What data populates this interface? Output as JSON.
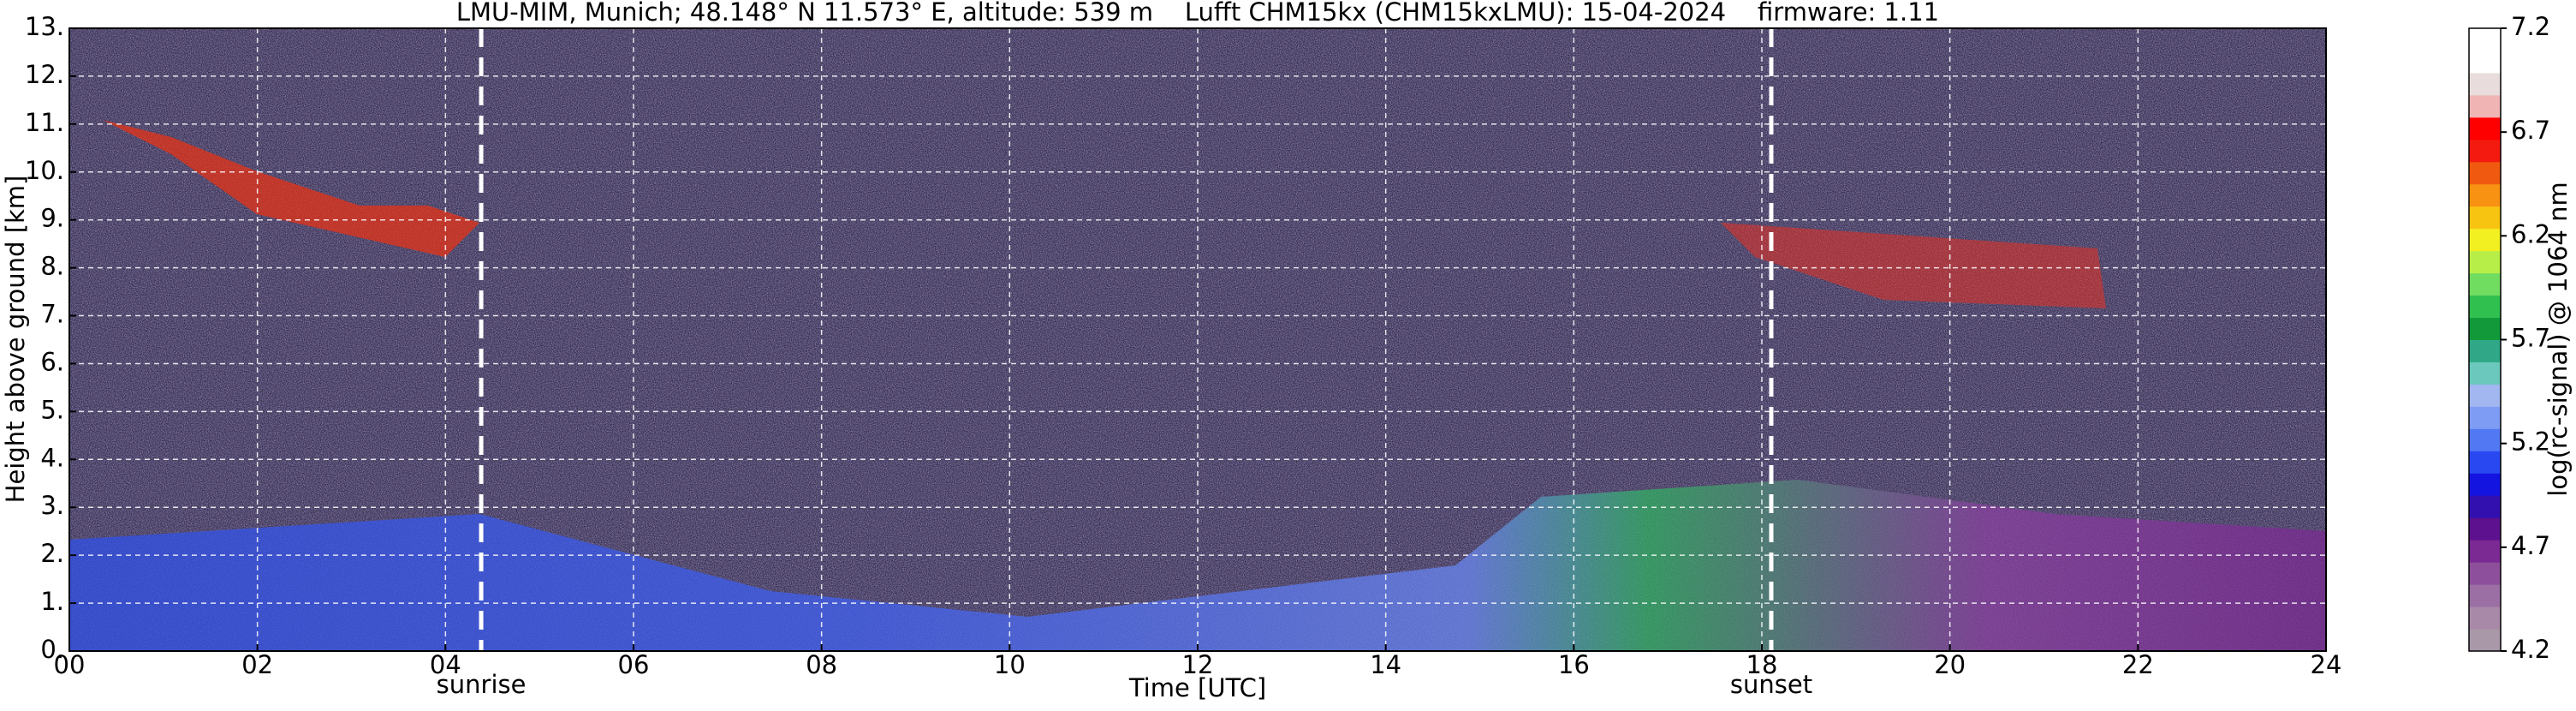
{
  "chart_data": {
    "type": "heatmap",
    "title": "LMU-MIM, Munich; 48.148° N 11.573° E, altitude: 539 m    Lufft CHM15kx (CHM15kxLMU): 15-04-2024    firmware: 1.11",
    "x_label": "Time [UTC]",
    "y_label": "Height above ground [km]",
    "xlim": [
      0,
      24
    ],
    "xticks": [
      {
        "value": 0,
        "label": "00"
      },
      {
        "value": 2,
        "label": "02"
      },
      {
        "value": 4,
        "label": "04"
      },
      {
        "value": 6,
        "label": "06"
      },
      {
        "value": 8,
        "label": "08"
      },
      10,
      12,
      14,
      16,
      18,
      20,
      22,
      24
    ],
    "ylim": [
      0,
      13
    ],
    "yticks": [
      {
        "value": 0,
        "label": "0."
      },
      {
        "value": 1,
        "label": "1."
      },
      {
        "value": 2,
        "label": "2."
      },
      {
        "value": 3,
        "label": "3."
      },
      {
        "value": 4,
        "label": "4."
      },
      {
        "value": 5,
        "label": "5."
      },
      {
        "value": 6,
        "label": "6."
      },
      {
        "value": 7,
        "label": "7."
      },
      {
        "value": 8,
        "label": "8."
      },
      {
        "value": 9,
        "label": "9."
      },
      {
        "value": 10,
        "label": "10."
      },
      {
        "value": 11,
        "label": "11."
      },
      {
        "value": 12,
        "label": "12."
      },
      {
        "value": 13,
        "label": "13."
      }
    ],
    "grid": true,
    "annotations": [
      {
        "text": "sunrise",
        "x": 4.38
      },
      {
        "text": "sunset",
        "x": 18.1
      }
    ],
    "colorbar": {
      "label": "log(rc-signal) @ 1064 nm",
      "lim": [
        4.2,
        7.2
      ],
      "ticks": [
        4.2,
        4.7,
        5.2,
        5.7,
        6.2,
        6.7,
        7.2
      ],
      "colors": [
        "#a898a8",
        "#a889a8",
        "#9c6fa4",
        "#8d4f9b",
        "#7a2a92",
        "#5e118f",
        "#3210b0",
        "#1414e0",
        "#2a48f2",
        "#5278f4",
        "#7e9cf4",
        "#a2b6f0",
        "#6ac8bc",
        "#30a888",
        "#129a3a",
        "#30c050",
        "#70dc60",
        "#b8ee48",
        "#f2f020",
        "#f8c412",
        "#f89212",
        "#f05a10",
        "#f41a10",
        "#ff0000",
        "#f0b4b4",
        "#e8dcdc",
        "#ffffff",
        "#ffffff"
      ]
    }
  }
}
